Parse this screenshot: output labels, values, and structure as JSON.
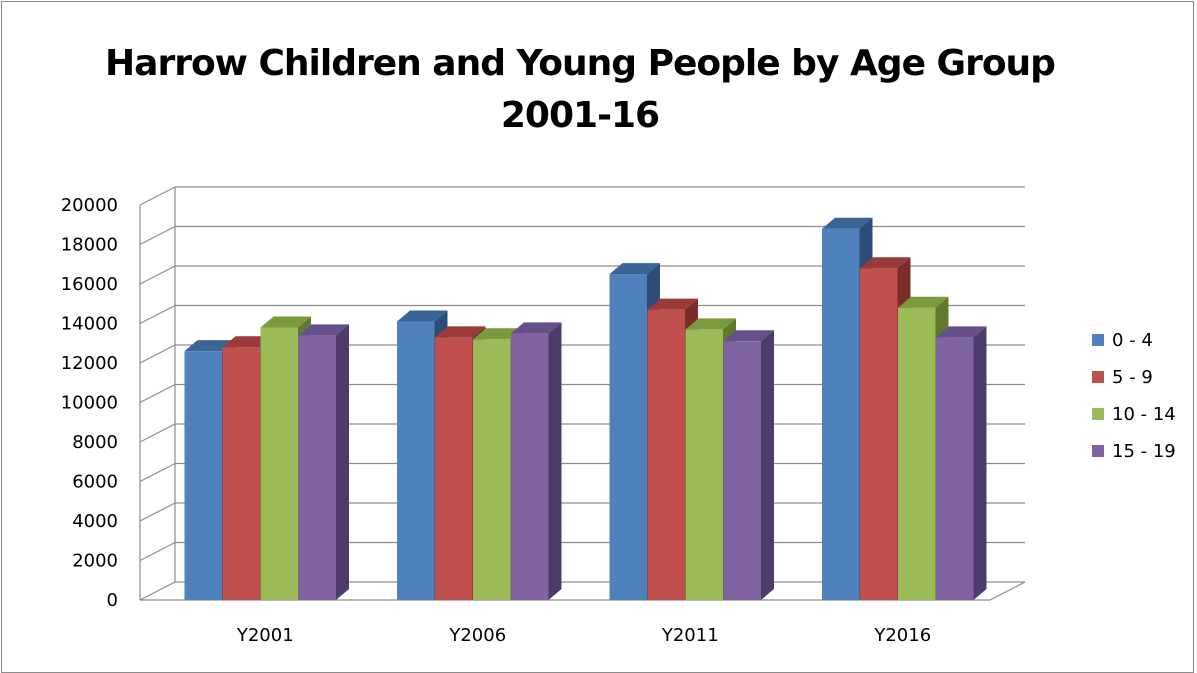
{
  "chart_data": {
    "type": "bar",
    "title_lines": [
      "Harrow Children and Young People by Age Group",
      "2001-16"
    ],
    "categories": [
      "Y2001",
      "Y2006",
      "Y2011",
      "Y2016"
    ],
    "series": [
      {
        "name": "0 - 4",
        "color": "#4f81bd",
        "top": "#3a6496",
        "side": "#2c4d75",
        "values": [
          12600,
          14100,
          16500,
          18800
        ]
      },
      {
        "name": "5 - 9",
        "color": "#c0504d",
        "top": "#9b3b39",
        "side": "#7b2d2b",
        "values": [
          12800,
          13300,
          14700,
          16800
        ]
      },
      {
        "name": "10 - 14",
        "color": "#9bbb59",
        "top": "#7a9a3d",
        "side": "#5f7a2c",
        "values": [
          13800,
          13200,
          13700,
          14800
        ]
      },
      {
        "name": "15 - 19",
        "color": "#8064a2",
        "top": "#65508a",
        "side": "#4d3c6b",
        "values": [
          13400,
          13500,
          13100,
          13300
        ]
      }
    ],
    "ylim": [
      0,
      20000
    ],
    "yticks": [
      "0",
      "2000",
      "4000",
      "6000",
      "8000",
      "10000",
      "12000",
      "14000",
      "16000",
      "18000",
      "20000"
    ],
    "xlabel": "",
    "ylabel": "",
    "grid": true,
    "legend": "right"
  }
}
